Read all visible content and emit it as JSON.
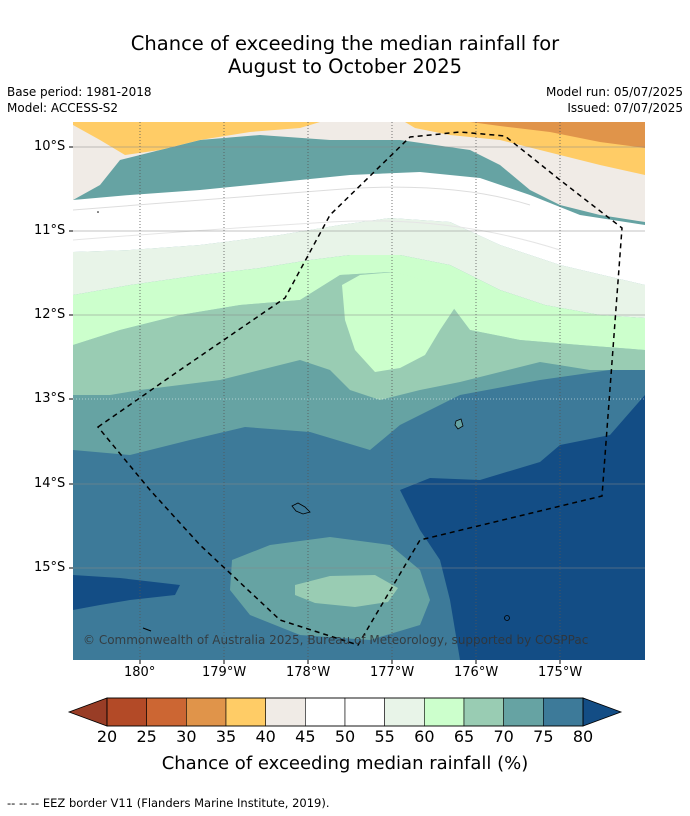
{
  "title": {
    "line1": "Chance of exceeding the median rainfall for",
    "line2": "August to October 2025"
  },
  "meta": {
    "base_period": "Base period: 1981-2018",
    "model": "Model: ACCESS-S2",
    "model_run": "Model run: 05/07/2025",
    "issued": "Issued: 07/07/2025"
  },
  "map": {
    "lat_labels": [
      "10°S",
      "11°S",
      "12°S",
      "13°S",
      "14°S",
      "15°S"
    ],
    "lon_labels": [
      "180°",
      "179°W",
      "178°W",
      "177°W",
      "176°W",
      "175°W"
    ],
    "copyright": "© Commonwealth of Australia 2025, Bureau of Meteorology, supported by COSPPac",
    "eez_line_color": "#000000"
  },
  "colorbar": {
    "ticks": [
      "20",
      "25",
      "30",
      "35",
      "40",
      "45",
      "50",
      "55",
      "60",
      "65",
      "70",
      "75",
      "80"
    ],
    "colors": [
      "#b34a27",
      "#cc6633",
      "#e0944a",
      "#ffcc66",
      "#f0ebe6",
      "#ffffff",
      "#ffffff",
      "#e8f4e8",
      "#ccffcc",
      "#99ccb3",
      "#66a3a3",
      "#3d7a99"
    ],
    "under_color": "#993d26",
    "over_color": "#134d85",
    "label": "Chance of exceeding median rainfall (%)"
  },
  "footer": {
    "legend_symbol": "--  --  --",
    "legend_text": "EEZ border V11 (Flanders Marine Institute, 2019)."
  }
}
